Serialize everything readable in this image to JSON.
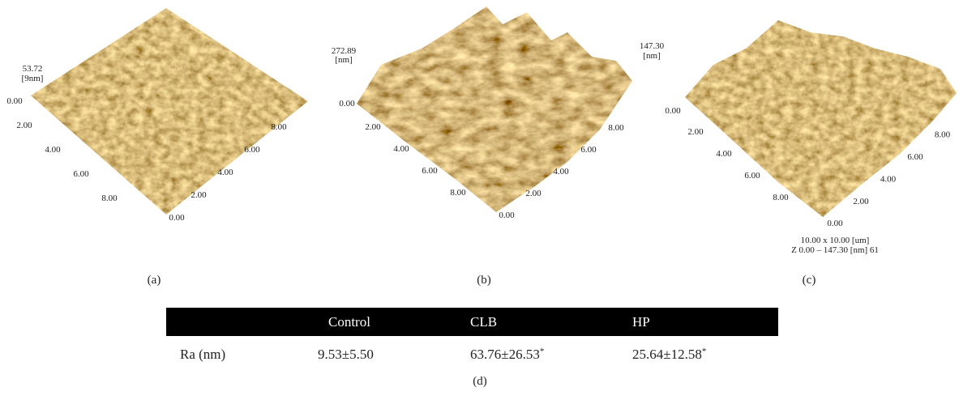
{
  "panels": [
    {
      "label": "(a)",
      "z_max": "53.72",
      "z_unit": "[9nm]",
      "z_min": "0.00",
      "axis_1": [
        "2.00",
        "4.00",
        "6.00",
        "8.00"
      ],
      "origin": "0.00",
      "axis_2": [
        "2.00",
        "4.00",
        "6.00",
        "8.00"
      ]
    },
    {
      "label": "(b)",
      "z_max": "272.89",
      "z_unit": "[nm]",
      "z_min": "0.00",
      "axis_1": [
        "2.00",
        "4.00",
        "6.00",
        "8.00"
      ],
      "origin": "0.00",
      "axis_2": [
        "2.00",
        "4.00",
        "6.00",
        "8.00"
      ]
    },
    {
      "label": "(c)",
      "z_max": "147.30",
      "z_unit": "[nm]",
      "z_min": "0.00",
      "axis_1": [
        "2.00",
        "4.00",
        "6.00",
        "8.00"
      ],
      "origin": "0.00",
      "axis_2": [
        "2.00",
        "4.00",
        "6.00",
        "8.00"
      ],
      "scan_info": [
        "10.00 x 10.00 [um]",
        "Z 0.00 – 147.30 [nm] 61"
      ]
    }
  ],
  "table": {
    "columns": [
      "Control",
      "CLB",
      "HP"
    ],
    "rows": [
      {
        "label": "Ra (nm)",
        "cells": [
          {
            "value": "9.53±5.50"
          },
          {
            "value": "63.76±26.53",
            "note": "*"
          },
          {
            "value": "25.64±12.58",
            "note": "*"
          }
        ]
      }
    ],
    "caption": "(d)"
  }
}
